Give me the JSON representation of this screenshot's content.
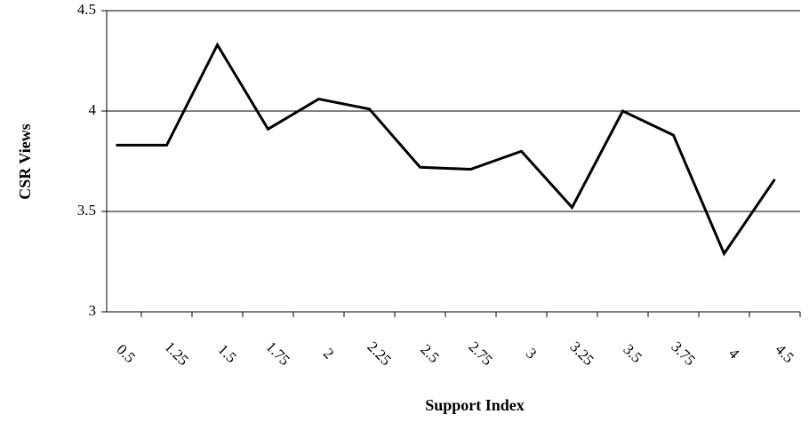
{
  "chart_data": {
    "type": "line",
    "x_label": "Support Index",
    "y_label": "CSR Views",
    "categories": [
      "0.5",
      "1.25",
      "1.5",
      "1.75",
      "2",
      "2.25",
      "2.5",
      "2.75",
      "3",
      "3.25",
      "3.5",
      "3.75",
      "4",
      "4.5"
    ],
    "series": [
      {
        "name": "CSR Views",
        "color": "#000000",
        "values": [
          3.83,
          3.83,
          4.33,
          3.91,
          4.06,
          4.01,
          3.72,
          3.71,
          3.8,
          3.52,
          4.0,
          3.88,
          3.29,
          3.66
        ]
      }
    ],
    "ylim": [
      3,
      4.5
    ],
    "yticks": [
      3,
      3.5,
      4,
      4.5
    ],
    "grid": true
  }
}
